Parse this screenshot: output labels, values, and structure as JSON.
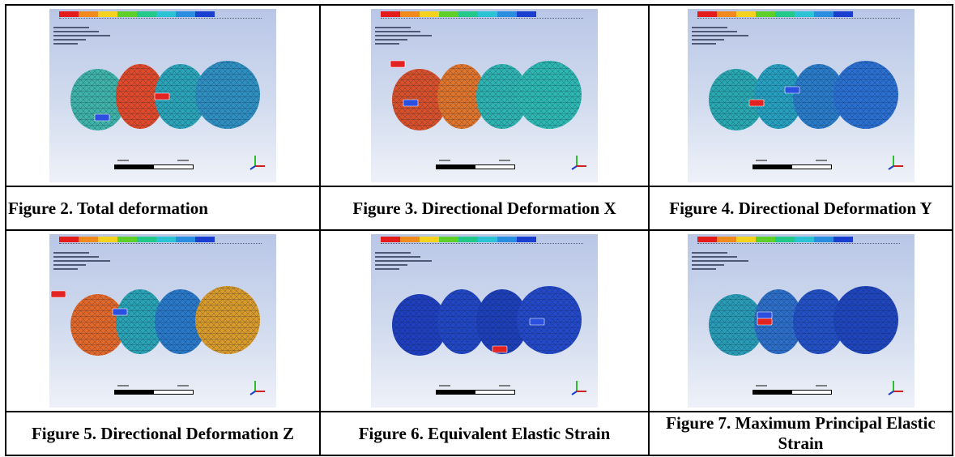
{
  "figures": [
    {
      "caption": "Figure 2. Total deformation"
    },
    {
      "caption": "Figure 3. Directional Deformation X"
    },
    {
      "caption": "Figure 4. Directional Deformation Y"
    },
    {
      "caption": "Figure 5. Directional Deformation Z"
    },
    {
      "caption": "Figure 6. Equivalent Elastic Strain"
    },
    {
      "caption": "Figure 7. Maximum Principal Elastic Strain"
    }
  ],
  "legend_colors": [
    "#e41b1b",
    "#f08a1e",
    "#f5d21e",
    "#5fcf2a",
    "#22c98a",
    "#2cc3d4",
    "#2a8ee0",
    "#1a3fd0"
  ],
  "min_marker_color": "#2b4fe0",
  "max_marker_color": "#e32222"
}
